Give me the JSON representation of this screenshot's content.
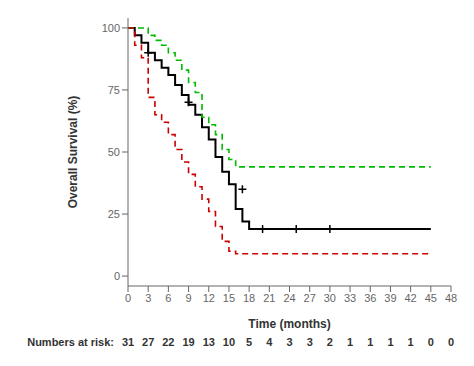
{
  "chart_data": {
    "type": "line",
    "x_label": "Time (months)",
    "y_label": "Overall Survival (%)",
    "xlim": [
      0,
      48
    ],
    "ylim": [
      -4,
      104
    ],
    "xticks": [
      0,
      3,
      6,
      9,
      12,
      15,
      18,
      21,
      24,
      27,
      30,
      33,
      36,
      39,
      42,
      45,
      48
    ],
    "yticks": [
      0,
      25,
      50,
      75,
      100
    ],
    "grid": false,
    "series": [
      {
        "type": "step",
        "color": "#000000",
        "line_style": "solid",
        "x": [
          0,
          1,
          2,
          3,
          4,
          5,
          6,
          7,
          8,
          9,
          10,
          11,
          12,
          13,
          14,
          15,
          16,
          17,
          18,
          19,
          45
        ],
        "values": [
          100,
          97,
          94,
          90,
          87,
          84,
          81,
          77,
          73,
          69,
          65,
          60,
          55,
          48,
          42,
          37,
          27,
          22,
          19,
          19,
          19
        ],
        "marker": "plus",
        "censor_x": [
          3,
          9,
          17,
          20,
          25,
          30
        ],
        "censor_values": [
          90,
          70,
          35,
          19,
          19,
          19
        ]
      },
      {
        "type": "step",
        "color": "#00bb00",
        "line_style": "dashed",
        "x": [
          0,
          3,
          4,
          5,
          6,
          7,
          8,
          9,
          10,
          11,
          12,
          13,
          14,
          15,
          16,
          17,
          18,
          45
        ],
        "values": [
          100,
          97,
          95,
          93,
          90,
          87,
          83,
          78,
          74,
          64,
          61,
          57,
          51,
          47,
          44,
          44,
          44,
          44
        ],
        "marker": "plus",
        "censor_x": [],
        "censor_values": []
      },
      {
        "type": "step",
        "color": "#cc0000",
        "line_style": "dashed",
        "x": [
          0,
          1,
          2,
          3,
          4,
          5,
          6,
          7,
          8,
          9,
          10,
          11,
          12,
          13,
          14,
          15,
          16,
          17,
          45
        ],
        "values": [
          100,
          93,
          88,
          72,
          65,
          62,
          57,
          51,
          46,
          41,
          36,
          31,
          26,
          20,
          14,
          10,
          9,
          9,
          9
        ],
        "marker": "plus",
        "censor_x": [],
        "censor_values": []
      }
    ],
    "numbers_at_risk": {
      "label": "Numbers at risk:",
      "x": [
        0,
        3,
        6,
        9,
        12,
        15,
        18,
        21,
        24,
        27,
        30,
        33,
        36,
        39,
        42,
        45,
        48
      ],
      "values": [
        31,
        27,
        22,
        19,
        13,
        10,
        5,
        4,
        3,
        3,
        2,
        1,
        1,
        1,
        1,
        0,
        0
      ]
    }
  }
}
